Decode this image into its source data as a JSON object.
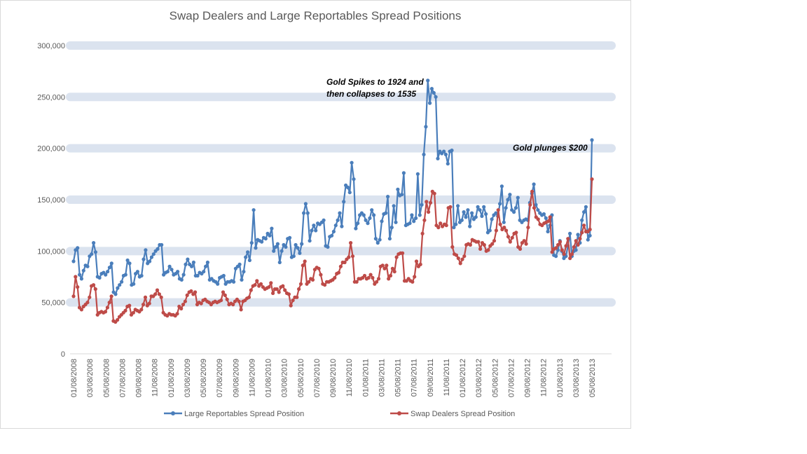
{
  "chart_data": {
    "type": "line",
    "title": "Swap Dealers and Large Reportables Spread Positions",
    "xlabel": "",
    "ylabel": "",
    "ylim": [
      0,
      300000
    ],
    "y_ticks": [
      "0",
      "50,000",
      "100,000",
      "150,000",
      "200,000",
      "250,000",
      "300,000"
    ],
    "y_tick_values": [
      0,
      50000,
      100000,
      150000,
      200000,
      250000,
      300000
    ],
    "x_tick_labels": [
      "01/08/2008",
      "03/08/2008",
      "05/08/2008",
      "07/08/2008",
      "09/08/2008",
      "11/08/2008",
      "01/08/2009",
      "03/08/2009",
      "05/08/2009",
      "07/08/2009",
      "09/08/2009",
      "11/08/2009",
      "01/08/2010",
      "03/08/2010",
      "05/08/2010",
      "07/08/2010",
      "09/08/2010",
      "11/08/2010",
      "01/08/2011",
      "03/08/2011",
      "05/08/2011",
      "07/08/2011",
      "09/08/2011",
      "11/08/2011",
      "01/08/2012",
      "03/08/2012",
      "05/08/2012",
      "07/08/2012",
      "09/08/2012",
      "11/08/2012",
      "01/08/2013",
      "03/08/2013",
      "05/08/2013"
    ],
    "series": [
      {
        "name": "Large Reportables Spread Position",
        "color": "#4a7ebb",
        "values": [
          90000,
          101000,
          103000,
          77000,
          73000,
          81000,
          86000,
          85000,
          95000,
          97000,
          108000,
          99000,
          75000,
          74000,
          78000,
          79000,
          77000,
          80000,
          84000,
          88000,
          60000,
          58000,
          64000,
          67000,
          70000,
          76000,
          77000,
          91000,
          88000,
          67000,
          68000,
          78000,
          80000,
          75000,
          76000,
          92000,
          101000,
          88000,
          90000,
          94000,
          97000,
          100000,
          102000,
          106000,
          106000,
          77000,
          79000,
          80000,
          85000,
          82000,
          77000,
          78000,
          80000,
          73000,
          72000,
          77000,
          87000,
          92000,
          87000,
          85000,
          89000,
          76000,
          76000,
          79000,
          78000,
          80000,
          85000,
          89000,
          72000,
          73000,
          71000,
          70000,
          68000,
          74000,
          75000,
          76000,
          68000,
          70000,
          70000,
          71000,
          70000,
          83000,
          85000,
          87000,
          72000,
          80000,
          94000,
          99000,
          91000,
          108000,
          140000,
          103000,
          111000,
          110000,
          109000,
          113000,
          112000,
          117000,
          115000,
          122000,
          100000,
          104000,
          107000,
          89000,
          100000,
          106000,
          104000,
          112000,
          113000,
          94000,
          95000,
          106000,
          103000,
          98000,
          107000,
          137000,
          146000,
          137000,
          110000,
          120000,
          125000,
          120000,
          127000,
          126000,
          128000,
          130000,
          105000,
          104000,
          114000,
          115000,
          119000,
          125000,
          130000,
          137000,
          124000,
          148000,
          164000,
          162000,
          157000,
          186000,
          170000,
          122000,
          127000,
          135000,
          137000,
          135000,
          130000,
          127000,
          132000,
          140000,
          135000,
          112000,
          108000,
          111000,
          129000,
          136000,
          137000,
          153000,
          112000,
          123000,
          144000,
          128000,
          160000,
          154000,
          155000,
          176000,
          125000,
          126000,
          127000,
          135000,
          129000,
          132000,
          175000,
          135000,
          145000,
          194000,
          221000,
          266000,
          244000,
          258000,
          254000,
          250000,
          190000,
          197000,
          195000,
          197000,
          194000,
          185000,
          197000,
          198000,
          123000,
          126000,
          144000,
          128000,
          130000,
          138000,
          133000,
          140000,
          124000,
          137000,
          131000,
          133000,
          143000,
          140000,
          134000,
          143000,
          136000,
          118000,
          120000,
          131000,
          135000,
          137000,
          134000,
          146000,
          163000,
          128000,
          142000,
          150000,
          155000,
          140000,
          138000,
          142000,
          152000,
          130000,
          128000,
          130000,
          131000,
          130000,
          147000,
          156000,
          165000,
          145000,
          140000,
          137000,
          135000,
          136000,
          132000,
          119000,
          125000,
          135000,
          96000,
          95000,
          101000,
          110000,
          100000,
          93000,
          95000,
          105000,
          117000,
          95000,
          100000,
          101000,
          116000,
          108000,
          130000,
          138000,
          143000,
          111000,
          115000,
          208000
        ]
      },
      {
        "name": "Swap Dealers Spread Position",
        "color": "#be4b48",
        "values": [
          56000,
          75000,
          65000,
          45000,
          43000,
          46000,
          48000,
          50000,
          55000,
          66000,
          67000,
          63000,
          38000,
          40000,
          41000,
          40000,
          41000,
          45000,
          50000,
          56000,
          32000,
          31000,
          33000,
          36000,
          38000,
          40000,
          42000,
          46000,
          47000,
          38000,
          40000,
          43000,
          42000,
          41000,
          43000,
          48000,
          55000,
          47000,
          49000,
          56000,
          56000,
          58000,
          62000,
          58000,
          55000,
          40000,
          38000,
          37000,
          39000,
          38000,
          38000,
          37000,
          39000,
          46000,
          44000,
          48000,
          51000,
          57000,
          60000,
          61000,
          58000,
          60000,
          48000,
          50000,
          49000,
          52000,
          53000,
          51000,
          50000,
          48000,
          50000,
          51000,
          50000,
          51000,
          52000,
          60000,
          57000,
          53000,
          48000,
          49000,
          48000,
          51000,
          53000,
          51000,
          43000,
          51000,
          52000,
          54000,
          55000,
          62000,
          66000,
          67000,
          71000,
          66000,
          68000,
          65000,
          63000,
          64000,
          65000,
          69000,
          59000,
          63000,
          63000,
          60000,
          65000,
          66000,
          62000,
          59000,
          58000,
          47000,
          52000,
          55000,
          55000,
          63000,
          68000,
          86000,
          90000,
          68000,
          70000,
          73000,
          72000,
          82000,
          84000,
          83000,
          77000,
          68000,
          67000,
          70000,
          70000,
          71000,
          72000,
          74000,
          78000,
          79000,
          85000,
          89000,
          89000,
          92000,
          94000,
          108000,
          95000,
          70000,
          70000,
          73000,
          73000,
          74000,
          76000,
          73000,
          74000,
          77000,
          74000,
          68000,
          70000,
          73000,
          85000,
          86000,
          83000,
          86000,
          73000,
          76000,
          83000,
          80000,
          94000,
          97000,
          98000,
          98000,
          71000,
          71000,
          73000,
          71000,
          70000,
          75000,
          90000,
          85000,
          87000,
          117000,
          130000,
          148000,
          138000,
          147000,
          158000,
          156000,
          125000,
          123000,
          127000,
          124000,
          126000,
          125000,
          142000,
          143000,
          104000,
          97000,
          96000,
          93000,
          88000,
          92000,
          95000,
          106000,
          107000,
          106000,
          111000,
          110000,
          109000,
          109000,
          102000,
          108000,
          106000,
          100000,
          101000,
          105000,
          107000,
          110000,
          120000,
          140000,
          126000,
          121000,
          123000,
          120000,
          114000,
          109000,
          113000,
          117000,
          118000,
          104000,
          102000,
          108000,
          110000,
          107000,
          123000,
          145000,
          158000,
          142000,
          133000,
          131000,
          126000,
          125000,
          127000,
          128000,
          129000,
          133000,
          99000,
          102000,
          103000,
          106000,
          109000,
          101000,
          97000,
          105000,
          112000,
          93000,
          97000,
          104000,
          110000,
          106000,
          112000,
          118000,
          125000,
          119000,
          119000,
          121000,
          170000
        ]
      }
    ],
    "annotations": [
      {
        "lines": [
          "Gold Spikes  to 1924 and",
          "then collapses  to 1535"
        ]
      },
      {
        "lines": [
          "Gold plunges $200"
        ]
      }
    ],
    "legend_position": "bottom",
    "grid": "horizontal bands"
  }
}
